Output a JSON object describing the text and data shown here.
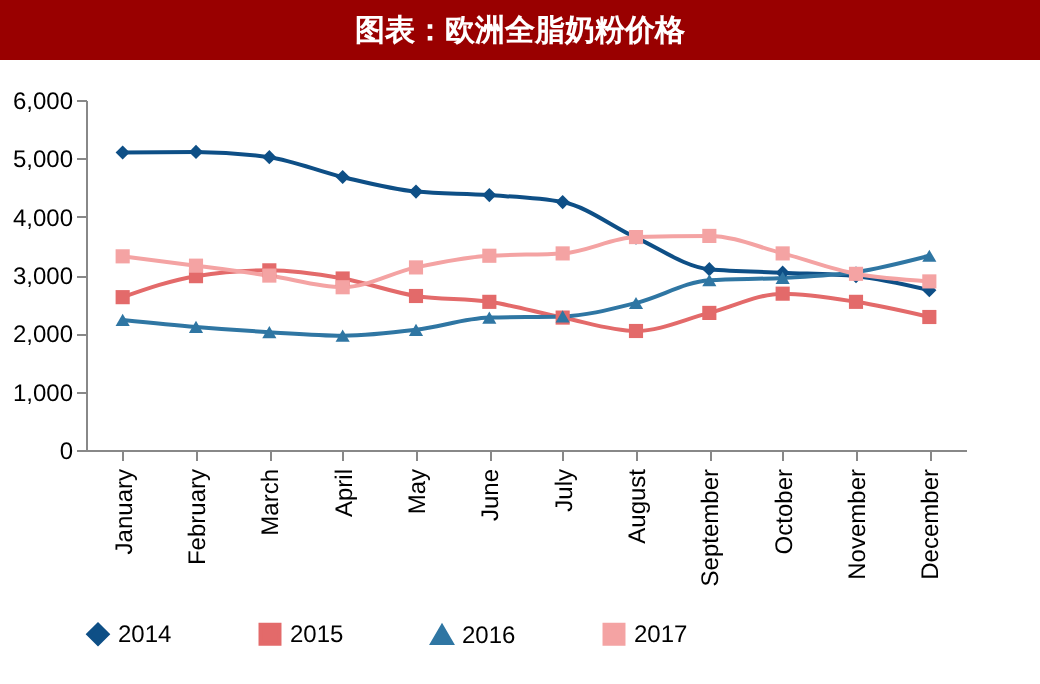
{
  "chart_data": {
    "type": "line",
    "title": "图表：欧洲全脂奶粉价格",
    "categories": [
      "January",
      "February",
      "March",
      "April",
      "May",
      "June",
      "July",
      "August",
      "September",
      "October",
      "November",
      "December"
    ],
    "series": [
      {
        "name": "2014",
        "color": "#0e4f86",
        "marker": "diamond",
        "values": [
          5100,
          5110,
          5020,
          4680,
          4430,
          4370,
          4250,
          3640,
          3100,
          3040,
          2980,
          2740
        ]
      },
      {
        "name": "2015",
        "color": "#e36a6a",
        "marker": "square",
        "values": [
          2620,
          2980,
          3080,
          2940,
          2640,
          2540,
          2270,
          2040,
          2350,
          2680,
          2540,
          2280
        ]
      },
      {
        "name": "2016",
        "color": "#2f76a3",
        "marker": "triangle",
        "values": [
          2230,
          2110,
          2020,
          1960,
          2060,
          2270,
          2290,
          2520,
          2910,
          2950,
          3050,
          3330
        ]
      },
      {
        "name": "2017",
        "color": "#f4a3a3",
        "marker": "square",
        "values": [
          3320,
          3160,
          2990,
          2790,
          3130,
          3330,
          3370,
          3650,
          3670,
          3370,
          3020,
          2890
        ]
      }
    ],
    "ylim": [
      0,
      6000
    ],
    "yticks": [
      0,
      {
        "value": 1000,
        "label": "1,000"
      },
      {
        "value": 2000,
        "label": "2,000"
      },
      {
        "value": 3000,
        "label": "3,000"
      },
      {
        "value": 4000,
        "label": "4,000"
      },
      {
        "value": 5000,
        "label": "5,000"
      },
      {
        "value": 6000,
        "label": "6,000"
      }
    ],
    "grid": false,
    "legend": "bottom"
  }
}
